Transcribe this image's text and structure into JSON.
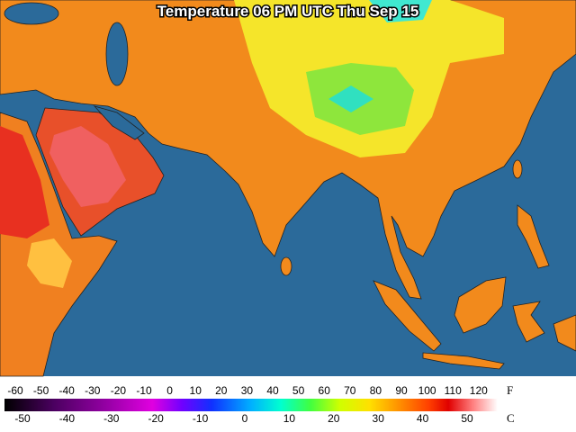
{
  "title": "Temperature 06 PM UTC Thu Sep 15",
  "legend": {
    "fahrenheit": {
      "unit": "F",
      "labels": [
        -60,
        -50,
        -40,
        -30,
        -20,
        -10,
        0,
        10,
        20,
        30,
        40,
        50,
        60,
        70,
        80,
        90,
        100,
        110,
        120
      ]
    },
    "celsius": {
      "unit": "C",
      "labels": [
        -50,
        -40,
        -30,
        -20,
        -10,
        0,
        10,
        20,
        30,
        40,
        50
      ]
    }
  }
}
